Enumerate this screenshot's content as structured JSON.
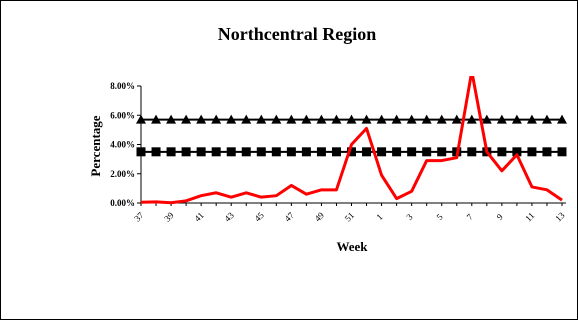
{
  "chart_data": {
    "type": "line",
    "title": "Northcentral  Region",
    "xlabel": "Week",
    "ylabel": "Percentage",
    "categories": [
      "37",
      "38",
      "39",
      "40",
      "41",
      "42",
      "43",
      "44",
      "45",
      "46",
      "47",
      "48",
      "49",
      "50",
      "51",
      "52",
      "1",
      "2",
      "3",
      "4",
      "5",
      "6",
      "7",
      "8",
      "9",
      "10",
      "11",
      "12",
      "13"
    ],
    "x_tick_labels": [
      "37",
      "39",
      "41",
      "43",
      "45",
      "47",
      "49",
      "51",
      "1",
      "3",
      "5",
      "7",
      "9",
      "11",
      "13"
    ],
    "y_tick_labels": [
      "0.00%",
      "2.00%",
      "4.00%",
      "6.00%",
      "8.00%"
    ],
    "ylim": [
      0,
      0.08
    ],
    "grid": false,
    "legend": "none",
    "series": [
      {
        "style": "line",
        "color": "#ff0000",
        "values": [
          0.0005,
          0.0008,
          0.0002,
          0.0015,
          0.005,
          0.007,
          0.004,
          0.007,
          0.004,
          0.005,
          0.012,
          0.006,
          0.009,
          0.009,
          0.04,
          0.051,
          0.019,
          0.003,
          0.008,
          0.029,
          0.029,
          0.031,
          0.09,
          0.035,
          0.022,
          0.033,
          0.011,
          0.009,
          0.002
        ]
      },
      {
        "style": "triangle-markers",
        "color": "#000000",
        "values": [
          0.057,
          0.057,
          0.057,
          0.057,
          0.057,
          0.057,
          0.057,
          0.057,
          0.057,
          0.057,
          0.057,
          0.057,
          0.057,
          0.057,
          0.057,
          0.057,
          0.057,
          0.057,
          0.057,
          0.057,
          0.057,
          0.057,
          0.057,
          0.057,
          0.057,
          0.057,
          0.057,
          0.057,
          0.057
        ]
      },
      {
        "style": "square-markers",
        "color": "#000000",
        "values": [
          0.035,
          0.035,
          0.035,
          0.035,
          0.035,
          0.035,
          0.035,
          0.035,
          0.035,
          0.035,
          0.035,
          0.035,
          0.035,
          0.035,
          0.035,
          0.035,
          0.035,
          0.035,
          0.035,
          0.035,
          0.035,
          0.035,
          0.035,
          0.035,
          0.035,
          0.035,
          0.035,
          0.035,
          0.035
        ]
      }
    ]
  }
}
